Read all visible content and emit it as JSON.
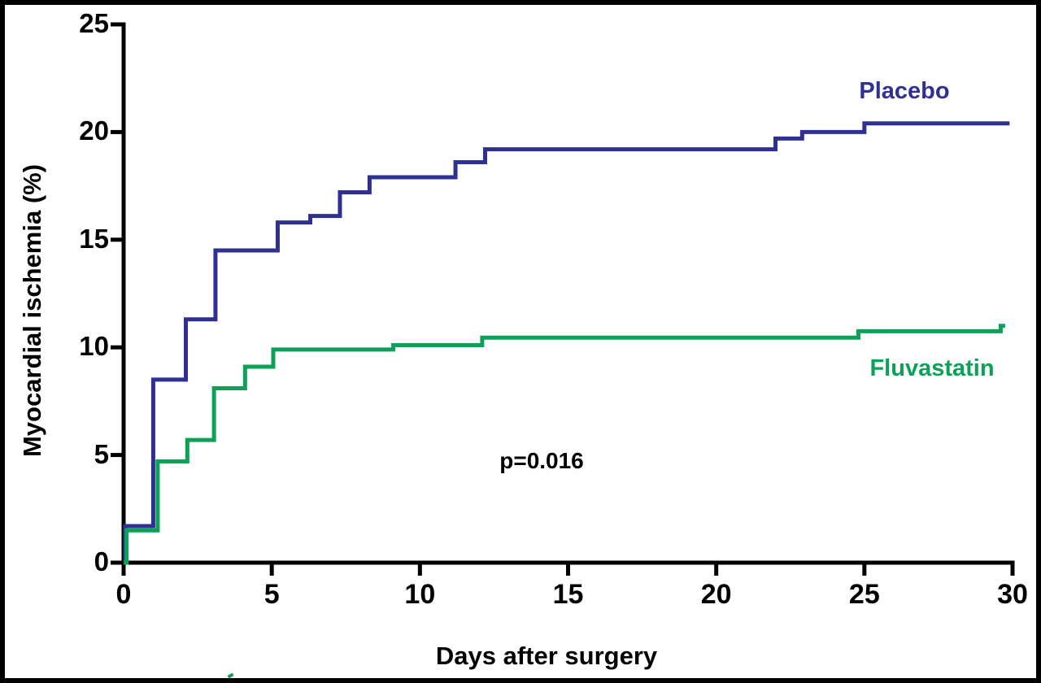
{
  "chart_data": {
    "type": "line",
    "subtype": "kaplan-meier-step",
    "title": "",
    "xlabel": "Days after surgery",
    "ylabel": "Myocardial ischemia (%)",
    "xlim": [
      0,
      30
    ],
    "ylim": [
      0,
      25
    ],
    "x_ticks": [
      0,
      5,
      10,
      15,
      20,
      25,
      30
    ],
    "y_ticks": [
      0,
      5,
      10,
      15,
      20,
      25
    ],
    "grid": false,
    "legend_position": "labels-near-curves",
    "annotation": {
      "text": "p=0.016",
      "x_day": 14.1,
      "y_pct": 4.6
    },
    "axis_color": "#000000",
    "series": [
      {
        "name": "Placebo",
        "color": "#2E3192",
        "steps": [
          [
            0,
            0
          ],
          [
            0.05,
            1.7
          ],
          [
            1.0,
            8.5
          ],
          [
            2.1,
            11.3
          ],
          [
            3.1,
            14.5
          ],
          [
            5.2,
            15.8
          ],
          [
            6.3,
            16.1
          ],
          [
            7.3,
            17.2
          ],
          [
            8.3,
            17.9
          ],
          [
            11.2,
            18.6
          ],
          [
            12.2,
            19.2
          ],
          [
            22.0,
            19.7
          ],
          [
            22.9,
            20.0
          ],
          [
            25.0,
            20.4
          ]
        ],
        "end_day": 29.9
      },
      {
        "name": "Fluvastatin",
        "color": "#0BA157",
        "steps": [
          [
            0,
            0
          ],
          [
            0.1,
            1.5
          ],
          [
            1.15,
            4.7
          ],
          [
            2.15,
            5.7
          ],
          [
            3.05,
            8.1
          ],
          [
            4.1,
            9.1
          ],
          [
            5.05,
            9.9
          ],
          [
            9.1,
            10.1
          ],
          [
            12.1,
            10.45
          ],
          [
            24.8,
            10.75
          ],
          [
            29.6,
            11.0
          ]
        ],
        "end_day": 29.75
      }
    ]
  }
}
